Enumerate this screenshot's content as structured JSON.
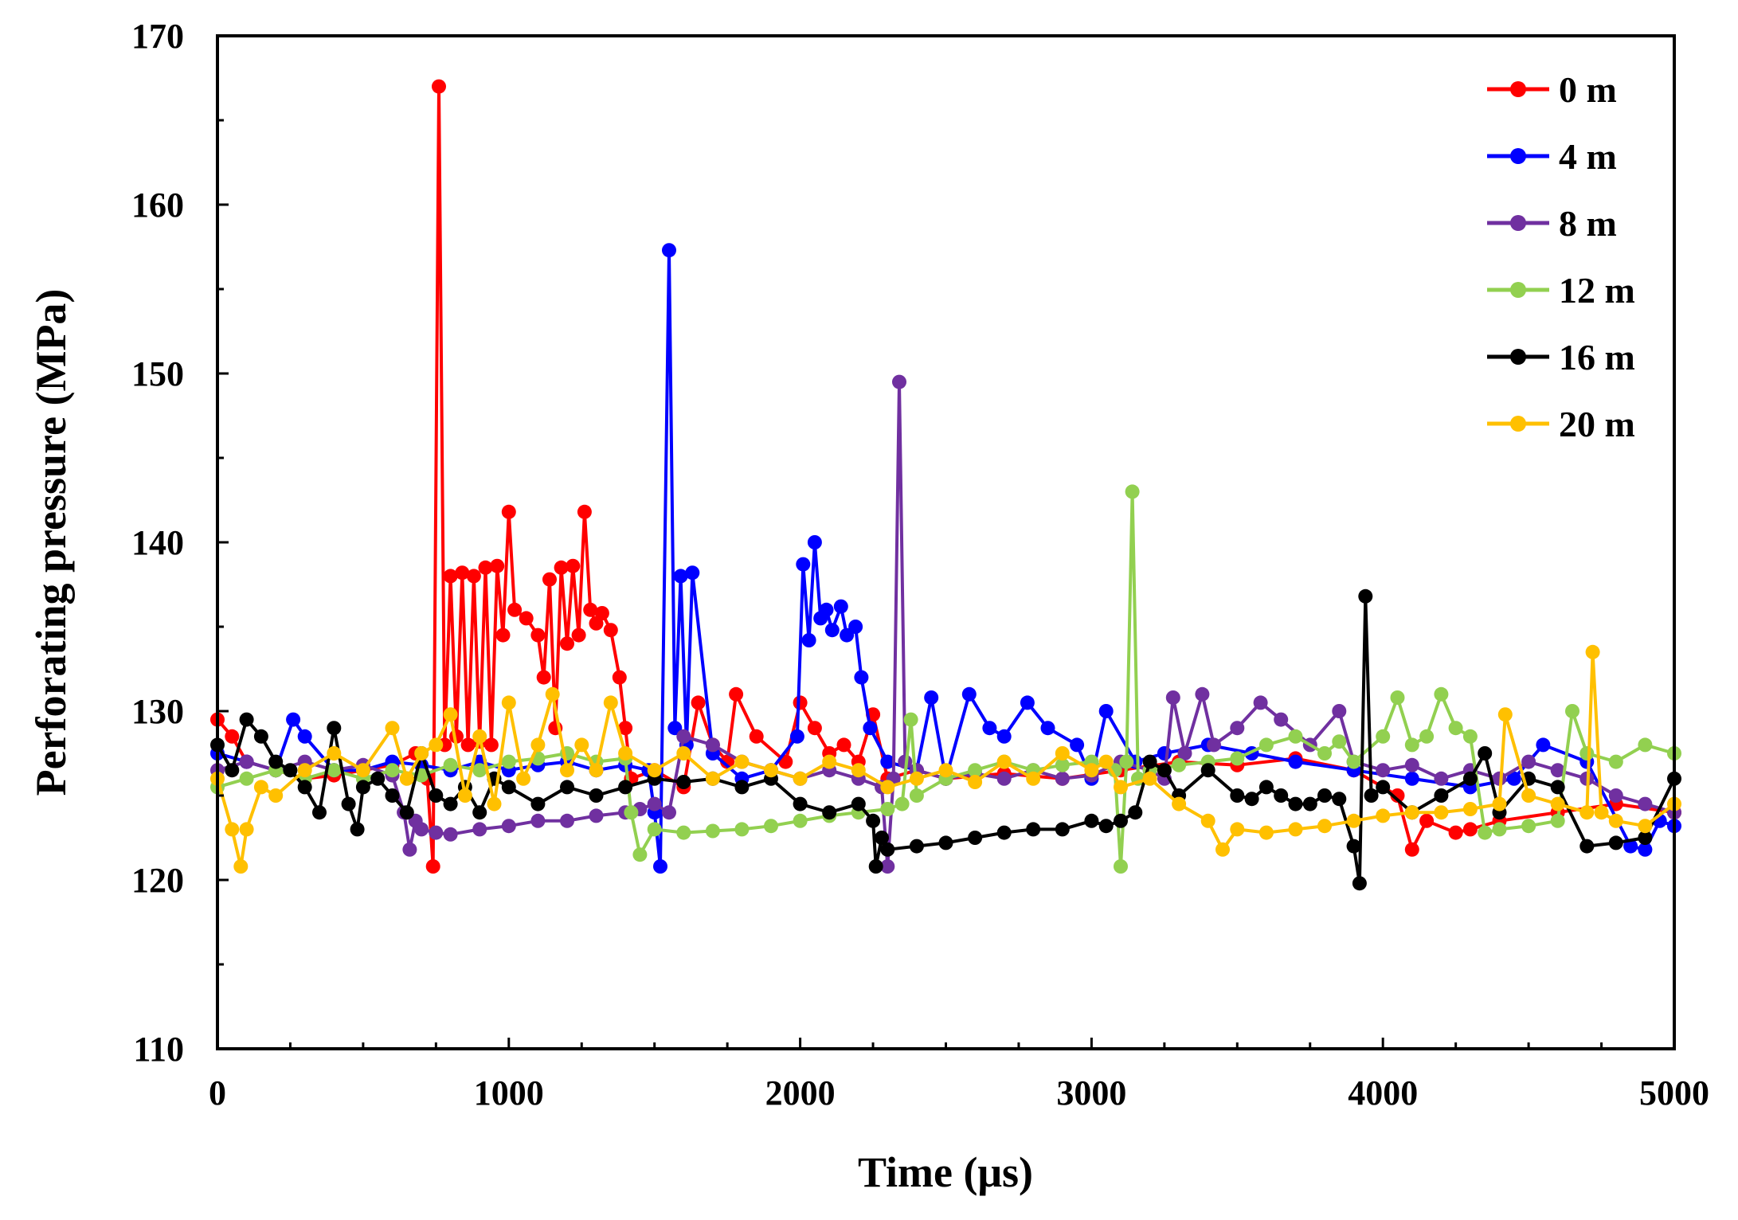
{
  "chart_data": {
    "type": "line",
    "title": "",
    "xlabel": "Time (μs)",
    "ylabel": "Perforating pressure (MPa)",
    "xlim": [
      0,
      5000
    ],
    "ylim": [
      110,
      170
    ],
    "xticks": [
      0,
      1000,
      2000,
      3000,
      4000,
      5000
    ],
    "yticks": [
      110,
      120,
      130,
      140,
      150,
      160,
      170
    ],
    "grid": false,
    "legend_position": "top-right",
    "series": [
      {
        "name": "0 m",
        "color": "#ff0000",
        "x": [
          0,
          50,
          100,
          200,
          300,
          400,
          500,
          600,
          680,
          720,
          740,
          760,
          780,
          800,
          820,
          840,
          860,
          880,
          900,
          920,
          940,
          960,
          980,
          1000,
          1020,
          1060,
          1100,
          1120,
          1140,
          1160,
          1180,
          1200,
          1220,
          1240,
          1260,
          1280,
          1300,
          1320,
          1350,
          1380,
          1400,
          1420,
          1500,
          1600,
          1650,
          1700,
          1750,
          1780,
          1850,
          1950,
          2000,
          2050,
          2100,
          2150,
          2200,
          2250,
          2300,
          2400,
          2500,
          2700,
          2900,
          3100,
          3300,
          3500,
          3700,
          3900,
          4050,
          4100,
          4150,
          4250,
          4300,
          4400,
          4600,
          4800,
          5000
        ],
        "y": [
          129.5,
          128.5,
          127.0,
          126.5,
          126.0,
          126.2,
          126.5,
          126.8,
          127.5,
          126.0,
          120.8,
          167.0,
          128.0,
          138.0,
          128.5,
          138.2,
          128.0,
          138.0,
          128.2,
          138.5,
          128.0,
          138.6,
          134.5,
          141.8,
          136.0,
          135.5,
          134.5,
          132.0,
          137.8,
          129.0,
          138.5,
          134.0,
          138.6,
          134.5,
          141.8,
          136.0,
          135.2,
          135.8,
          134.8,
          132.0,
          129.0,
          126.0,
          126.5,
          125.5,
          130.5,
          128.0,
          127.0,
          131.0,
          128.5,
          127.0,
          130.5,
          129.0,
          127.5,
          128.0,
          127.0,
          129.8,
          126.0,
          126.5,
          126.0,
          126.3,
          126.0,
          126.5,
          127.0,
          126.8,
          127.2,
          126.5,
          125.0,
          121.8,
          123.5,
          122.8,
          123.0,
          123.5,
          124.0,
          124.5,
          124.0
        ]
      },
      {
        "name": "4 m",
        "color": "#0000ff",
        "x": [
          0,
          100,
          200,
          260,
          300,
          400,
          500,
          600,
          700,
          800,
          900,
          1000,
          1100,
          1200,
          1300,
          1400,
          1480,
          1500,
          1520,
          1550,
          1570,
          1590,
          1610,
          1630,
          1700,
          1800,
          1900,
          1990,
          2010,
          2030,
          2050,
          2070,
          2090,
          2110,
          2140,
          2160,
          2190,
          2210,
          2240,
          2300,
          2400,
          2450,
          2500,
          2580,
          2650,
          2700,
          2780,
          2850,
          2950,
          3000,
          3050,
          3150,
          3250,
          3400,
          3550,
          3700,
          3900,
          4100,
          4300,
          4450,
          4550,
          4700,
          4850,
          4900,
          4950,
          5000
        ],
        "y": [
          127.5,
          127.0,
          126.5,
          129.5,
          128.5,
          126.5,
          126.5,
          127.0,
          126.8,
          126.5,
          127.0,
          126.5,
          126.8,
          127.0,
          126.5,
          126.8,
          126.5,
          124.0,
          120.8,
          157.3,
          129.0,
          138.0,
          128.0,
          138.2,
          127.5,
          126.0,
          126.5,
          128.5,
          138.7,
          134.2,
          140.0,
          135.5,
          136.0,
          134.8,
          136.2,
          134.5,
          135.0,
          132.0,
          129.0,
          127.0,
          126.5,
          130.8,
          126.0,
          131.0,
          129.0,
          128.5,
          130.5,
          129.0,
          128.0,
          126.0,
          130.0,
          127.0,
          127.5,
          128.0,
          127.5,
          127.0,
          126.5,
          126.0,
          125.5,
          126.0,
          128.0,
          127.0,
          122.0,
          121.8,
          123.5,
          123.2
        ]
      },
      {
        "name": "8 m",
        "color": "#7030a0",
        "x": [
          0,
          100,
          200,
          300,
          400,
          500,
          600,
          640,
          660,
          680,
          700,
          750,
          800,
          900,
          1000,
          1100,
          1200,
          1300,
          1400,
          1450,
          1500,
          1550,
          1600,
          1700,
          1800,
          1900,
          2000,
          2100,
          2200,
          2280,
          2300,
          2320,
          2340,
          2360,
          2400,
          2500,
          2600,
          2700,
          2800,
          2900,
          3000,
          3100,
          3200,
          3250,
          3280,
          3320,
          3380,
          3420,
          3500,
          3580,
          3650,
          3750,
          3850,
          3900,
          4000,
          4100,
          4200,
          4300,
          4400,
          4500,
          4600,
          4700,
          4800,
          4900,
          5000
        ],
        "y": [
          126.5,
          127.0,
          126.5,
          127.0,
          126.5,
          126.8,
          126.2,
          124.0,
          121.8,
          123.5,
          123.0,
          122.8,
          122.7,
          123.0,
          123.2,
          123.5,
          123.5,
          123.8,
          124.0,
          124.2,
          124.5,
          124.0,
          128.5,
          128.0,
          127.0,
          126.5,
          126.0,
          126.5,
          126.0,
          125.5,
          120.8,
          126.0,
          149.5,
          127.0,
          126.5,
          126.0,
          126.3,
          126.0,
          126.5,
          126.0,
          126.2,
          127.0,
          126.5,
          126.0,
          130.8,
          127.5,
          131.0,
          128.0,
          129.0,
          130.5,
          129.5,
          128.0,
          130.0,
          127.0,
          126.5,
          126.8,
          126.0,
          126.5,
          126.0,
          127.0,
          126.5,
          126.0,
          125.0,
          124.5,
          124.0
        ]
      },
      {
        "name": "12 m",
        "color": "#92d050",
        "x": [
          0,
          100,
          200,
          300,
          400,
          500,
          600,
          700,
          800,
          900,
          1000,
          1100,
          1200,
          1300,
          1400,
          1420,
          1450,
          1500,
          1600,
          1700,
          1800,
          1900,
          2000,
          2100,
          2200,
          2300,
          2350,
          2380,
          2400,
          2500,
          2600,
          2700,
          2800,
          2900,
          3000,
          3080,
          3100,
          3120,
          3140,
          3160,
          3200,
          3300,
          3400,
          3500,
          3600,
          3700,
          3800,
          3850,
          3900,
          4000,
          4050,
          4100,
          4150,
          4200,
          4250,
          4300,
          4350,
          4400,
          4500,
          4600,
          4650,
          4700,
          4800,
          4900,
          5000
        ],
        "y": [
          125.5,
          126.0,
          126.5,
          126.0,
          126.5,
          126.0,
          126.5,
          126.2,
          126.8,
          126.5,
          127.0,
          127.2,
          127.5,
          127.0,
          127.2,
          124.0,
          121.5,
          123.0,
          122.8,
          122.9,
          123.0,
          123.2,
          123.5,
          123.8,
          124.0,
          124.2,
          124.5,
          129.5,
          125.0,
          126.0,
          126.5,
          127.0,
          126.5,
          126.8,
          127.0,
          126.5,
          120.8,
          127.0,
          143.0,
          126.0,
          126.5,
          126.8,
          127.0,
          127.2,
          128.0,
          128.5,
          127.5,
          128.2,
          127.0,
          128.5,
          130.8,
          128.0,
          128.5,
          131.0,
          129.0,
          128.5,
          122.8,
          123.0,
          123.2,
          123.5,
          130.0,
          127.5,
          127.0,
          128.0,
          127.5
        ]
      },
      {
        "name": "16 m",
        "color": "#000000",
        "x": [
          0,
          50,
          100,
          150,
          200,
          250,
          300,
          350,
          400,
          450,
          480,
          500,
          550,
          600,
          650,
          700,
          750,
          800,
          850,
          900,
          950,
          1000,
          1100,
          1200,
          1300,
          1400,
          1500,
          1600,
          1700,
          1800,
          1900,
          2000,
          2100,
          2200,
          2250,
          2260,
          2280,
          2300,
          2400,
          2500,
          2600,
          2700,
          2800,
          2900,
          3000,
          3050,
          3100,
          3150,
          3200,
          3250,
          3300,
          3400,
          3500,
          3550,
          3600,
          3650,
          3700,
          3750,
          3800,
          3850,
          3900,
          3920,
          3940,
          3960,
          4000,
          4100,
          4200,
          4300,
          4350,
          4400,
          4500,
          4600,
          4700,
          4800,
          4900,
          5000
        ],
        "y": [
          128.0,
          126.5,
          129.5,
          128.5,
          127.0,
          126.5,
          125.5,
          124.0,
          129.0,
          124.5,
          123.0,
          125.5,
          126.0,
          125.0,
          124.0,
          127.5,
          125.0,
          124.5,
          125.5,
          124.0,
          126.0,
          125.5,
          124.5,
          125.5,
          125.0,
          125.5,
          126.0,
          125.8,
          126.0,
          125.5,
          126.0,
          124.5,
          124.0,
          124.5,
          123.5,
          120.8,
          122.5,
          121.8,
          122.0,
          122.2,
          122.5,
          122.8,
          123.0,
          123.0,
          123.5,
          123.2,
          123.5,
          124.0,
          127.0,
          126.5,
          125.0,
          126.5,
          125.0,
          124.8,
          125.5,
          125.0,
          124.5,
          124.5,
          125.0,
          124.8,
          122.0,
          119.8,
          136.8,
          125.0,
          125.5,
          124.0,
          125.0,
          126.0,
          127.5,
          124.0,
          126.0,
          125.5,
          122.0,
          122.2,
          122.5,
          126.0
        ]
      },
      {
        "name": "20 m",
        "color": "#ffc000",
        "x": [
          0,
          50,
          80,
          100,
          150,
          200,
          300,
          400,
          500,
          600,
          650,
          700,
          750,
          800,
          850,
          900,
          950,
          1000,
          1050,
          1100,
          1150,
          1200,
          1250,
          1300,
          1350,
          1400,
          1500,
          1600,
          1700,
          1800,
          1900,
          2000,
          2100,
          2200,
          2300,
          2400,
          2500,
          2600,
          2700,
          2800,
          2900,
          3000,
          3050,
          3100,
          3200,
          3300,
          3400,
          3450,
          3500,
          3600,
          3700,
          3800,
          3900,
          4000,
          4100,
          4200,
          4300,
          4400,
          4420,
          4500,
          4600,
          4700,
          4720,
          4750,
          4800,
          4900,
          5000
        ],
        "y": [
          126.0,
          123.0,
          120.8,
          123.0,
          125.5,
          125.0,
          126.5,
          127.5,
          126.5,
          129.0,
          126.0,
          127.5,
          128.0,
          129.8,
          125.0,
          128.5,
          124.5,
          130.5,
          126.0,
          128.0,
          131.0,
          126.5,
          128.0,
          126.5,
          130.5,
          127.5,
          126.5,
          127.5,
          126.0,
          127.0,
          126.5,
          126.0,
          127.0,
          126.5,
          125.5,
          126.0,
          126.5,
          125.8,
          127.0,
          126.0,
          127.5,
          126.5,
          127.0,
          125.5,
          126.0,
          124.5,
          123.5,
          121.8,
          123.0,
          122.8,
          123.0,
          123.2,
          123.5,
          123.8,
          124.0,
          124.0,
          124.2,
          124.5,
          129.8,
          125.0,
          124.5,
          124.0,
          133.5,
          124.0,
          123.5,
          123.2,
          124.5
        ]
      }
    ]
  }
}
